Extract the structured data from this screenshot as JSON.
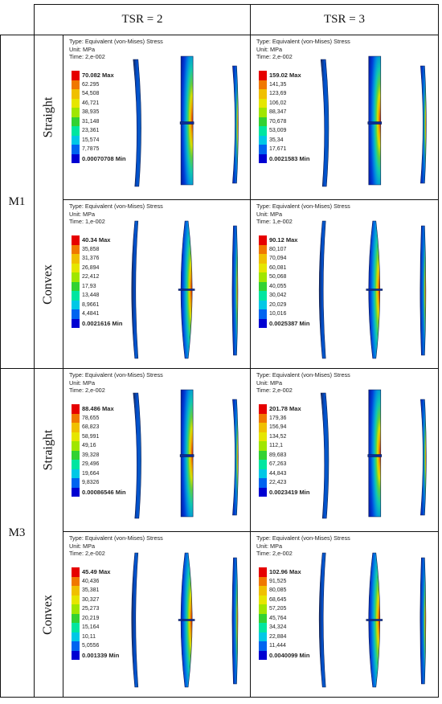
{
  "headers": {
    "col1": "TSR = 2",
    "col2": "TSR = 3"
  },
  "groups": [
    "M1",
    "M3"
  ],
  "row_labels": [
    "Straight",
    "Convex",
    "Straight",
    "Convex"
  ],
  "colors": [
    "#e60000",
    "#f07800",
    "#f0c000",
    "#e6e600",
    "#a0e600",
    "#32d232",
    "#00e6a0",
    "#00c8e6",
    "#0064f0",
    "#0000d2"
  ],
  "cells": [
    {
      "type": "Type: Equivalent (von-Mises) Stress",
      "unit": "Unit: MPa",
      "time": "Time: 2,e-002",
      "levels": [
        "70.082 Max",
        "62.295",
        "54,508",
        "46,721",
        "38,935",
        "31,148",
        "23,361",
        "15,574",
        "7,7875",
        "0.00070708 Min"
      ]
    },
    {
      "type": "Type: Equivalent (von-Mises) Stress",
      "unit": "Unit: MPa",
      "time": "Time: 2,e-002",
      "levels": [
        "159.02 Max",
        "141,35",
        "123,69",
        "106,02",
        "88,347",
        "70,678",
        "53,009",
        "35,34",
        "17,671",
        "0.0021583 Min"
      ]
    },
    {
      "type": "Type: Equivalent (von-Mises) Stress",
      "unit": "Unit: MPa",
      "time": "Time: 1,e-002",
      "levels": [
        "40.34 Max",
        "35,858",
        "31,376",
        "26,894",
        "22,412",
        "17,93",
        "13,448",
        "8,9661",
        "4,4841",
        "0.0021616 Min"
      ]
    },
    {
      "type": "Type: Equivalent (von-Mises) Stress",
      "unit": "Unit: MPa",
      "time": "Time: 1,e-002",
      "levels": [
        "90.12 Max",
        "80,107",
        "70,094",
        "60,081",
        "50,068",
        "40,055",
        "30,042",
        "20,029",
        "10,016",
        "0.0025387 Min"
      ]
    },
    {
      "type": "Type: Equivalent (von-Mises) Stress",
      "unit": "Unit: MPa",
      "time": "Time: 2,e-002",
      "levels": [
        "88.486 Max",
        "78,655",
        "68,823",
        "58,991",
        "49,16",
        "39,328",
        "29,496",
        "19,664",
        "9,8326",
        "0.00086546 Min"
      ]
    },
    {
      "type": "Type: Equivalent (von-Mises) Stress",
      "unit": "Unit: MPa",
      "time": "Time: 2,e-002",
      "levels": [
        "201.78 Max",
        "179,36",
        "156,94",
        "134,52",
        "112,1",
        "89,683",
        "67,263",
        "44,843",
        "22,423",
        "0.0023419 Min"
      ]
    },
    {
      "type": "Type: Equivalent (von-Mises) Stress",
      "unit": "Unit: MPa",
      "time": "Time: 2,e-002",
      "levels": [
        "45.49 Max",
        "40,436",
        "35,381",
        "30,327",
        "25,273",
        "20,219",
        "15,164",
        "10,11",
        "5,0556",
        "0.001339 Min"
      ]
    },
    {
      "type": "Type: Equivalent (von-Mises) Stress",
      "unit": "Unit: MPa",
      "time": "Time: 2,e-002",
      "levels": [
        "102.96 Max",
        "91,525",
        "80,085",
        "68,645",
        "57,205",
        "45,764",
        "34,324",
        "22,884",
        "11,444",
        "0.0040099 Min"
      ]
    }
  ]
}
